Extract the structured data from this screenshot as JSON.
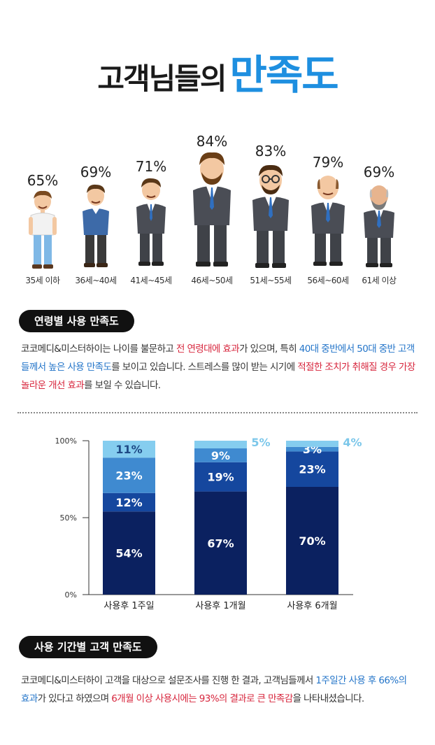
{
  "header": {
    "title_part1": "고객님들의",
    "title_part2": "만족도"
  },
  "age_groups": [
    {
      "percent": "65%",
      "label": "35세 이하"
    },
    {
      "percent": "69%",
      "label": "36세~40세"
    },
    {
      "percent": "71%",
      "label": "41세~45세"
    },
    {
      "percent": "84%",
      "label": "46세~50세"
    },
    {
      "percent": "83%",
      "label": "51세~55세"
    },
    {
      "percent": "79%",
      "label": "56세~60세"
    },
    {
      "percent": "69%",
      "label": "61세 이상"
    }
  ],
  "section1": {
    "badge": "연령별 사용 만족도",
    "p1": "코코메디&미스터하이는 나이를 불문하고 ",
    "p2": "전 연령대에 효과",
    "p3": "가 있으며, 특히 ",
    "p4": "40대 중반",
    "p5": "에서 50대 중반 고객들께서 높은 사용 만족도",
    "p6": "를 보이고 있습니다. 스트레스를 많이 받는 시기에 ",
    "p7": "적절한 조치가 취해질 경우 가장 놀라운 개선 효과",
    "p8": "를 보일 수 있습니다."
  },
  "section2": {
    "badge": "사용 기간별 고객 만족도",
    "p1": "코코메디&미스터하이 고객을 대상으로 설문조사를 진행 한 결과, 고객님들께서 ",
    "p2": "1주일간 사용 후 66%의 효과",
    "p3": "가 있다고 하였으며 ",
    "p4": "6개월 이상 사용시에는 93%의 결과로 큰 만족감",
    "p5": "을 나타내셨습니다."
  },
  "chart_data": {
    "type": "bar",
    "stacked": true,
    "categories": [
      "사용후 1주일",
      "사용후 1개월",
      "사용후 6개월"
    ],
    "y_ticks": [
      "0%",
      "50%",
      "100%"
    ],
    "ylim": [
      0,
      100
    ],
    "series": [
      {
        "values": [
          54,
          67,
          70
        ],
        "labels": [
          "54%",
          "67%",
          "70%"
        ],
        "color": "#0b2160"
      },
      {
        "values": [
          12,
          19,
          23
        ],
        "labels": [
          "12%",
          "19%",
          "23%"
        ],
        "color": "#15479e"
      },
      {
        "values": [
          23,
          9,
          3
        ],
        "labels": [
          "23%",
          "9%",
          "3%"
        ],
        "color": "#3f8ad0"
      },
      {
        "values": [
          11,
          5,
          4
        ],
        "labels": [
          "11%",
          "5%",
          "4%"
        ],
        "color": "#85cdef"
      }
    ]
  },
  "colors": {
    "accent": "#1e8fe0",
    "highlight_red": "#d7263d",
    "highlight_blue": "#2475c9"
  }
}
